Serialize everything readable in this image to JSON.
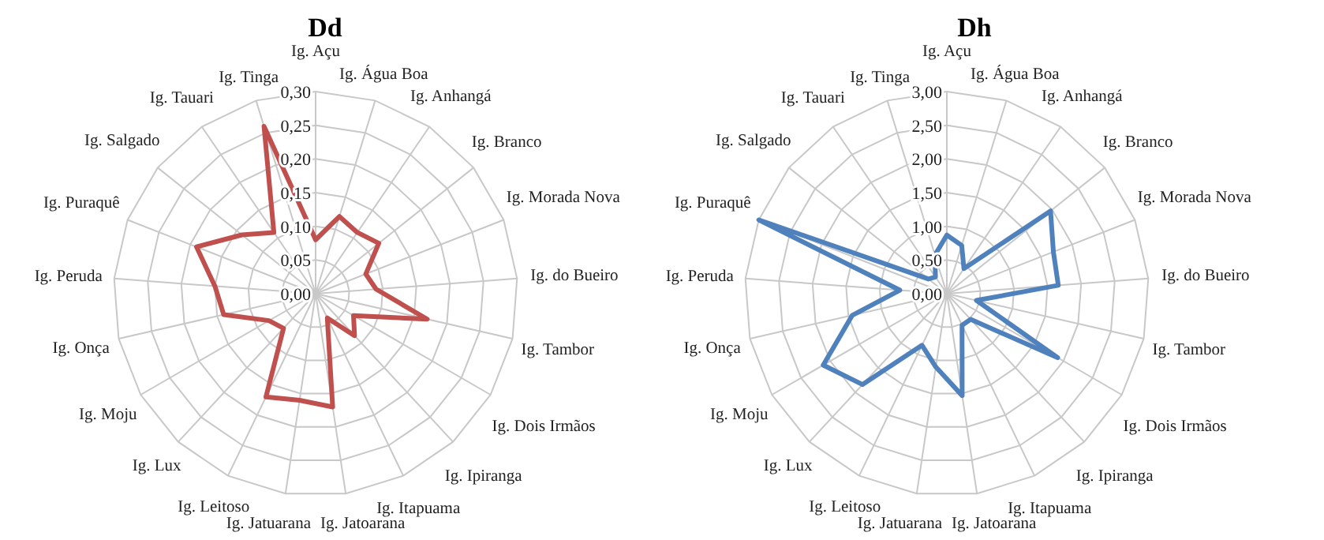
{
  "chart_data": [
    {
      "type": "radar",
      "title": "Dd",
      "categories": [
        "Ig. Açu",
        "Ig. Água Boa",
        "Ig. Anhangá",
        "Ig. Branco",
        "Ig. Morada Nova",
        "Ig. do Bueiro",
        "Ig. Tambor",
        "Ig. Dois Irmãos",
        "Ig. Ipiranga",
        "Ig. Itapuama",
        "Ig. Jatoarana",
        "Ig. Jatuarana",
        "Ig. Leitoso",
        "Ig. Lux",
        "Ig. Moju",
        "Ig. Onça",
        "Ig. Peruda",
        "Ig. Puraquê",
        "Ig. Salgado",
        "Ig. Tauari",
        "Ig. Tinga"
      ],
      "series": [
        {
          "color": "#c0504d",
          "values": [
            0.08,
            0.12,
            0.11,
            0.12,
            0.08,
            0.09,
            0.17,
            0.065,
            0.085,
            0.04,
            0.17,
            0.16,
            0.17,
            0.07,
            0.08,
            0.14,
            0.15,
            0.19,
            0.14,
            0.11,
            0.26
          ]
        }
      ],
      "ylim": [
        0,
        0.3
      ],
      "yticks": [
        {
          "value": 0,
          "label": "0,00"
        },
        {
          "value": 0.05,
          "label": "0,05"
        },
        {
          "value": 0.1,
          "label": "0,10"
        },
        {
          "value": 0.15,
          "label": "0,15"
        },
        {
          "value": 0.2,
          "label": "0,20"
        },
        {
          "value": 0.25,
          "label": "0,25"
        },
        {
          "value": 0.3,
          "label": "0,30"
        }
      ],
      "grid": true,
      "marker": "none"
    },
    {
      "type": "radar",
      "title": "Dh",
      "categories": [
        "Ig. Açu",
        "Ig. Água Boa",
        "Ig. Anhangá",
        "Ig. Branco",
        "Ig. Morada Nova",
        "Ig. do Bueiro",
        "Ig. Tambor",
        "Ig. Dois Irmãos",
        "Ig. Ipiranga",
        "Ig. Itapuama",
        "Ig. Jatoarana",
        "Ig. Jatuarana",
        "Ig. Leitoso",
        "Ig. Lux",
        "Ig. Moju",
        "Ig. Onça",
        "Ig. Peruda",
        "Ig. Puraquê",
        "Ig. Salgado",
        "Ig. Tauari",
        "Ig. Tinga"
      ],
      "series": [
        {
          "color": "#4f81bd",
          "values": [
            0.87,
            0.75,
            0.45,
            1.97,
            1.7,
            1.66,
            0.45,
            1.9,
            0.52,
            0.52,
            1.53,
            1.1,
            0.85,
            1.84,
            2.12,
            1.44,
            0.7,
            3.0,
            0.35,
            0.3,
            0.6
          ]
        }
      ],
      "ylim": [
        0,
        3
      ],
      "yticks": [
        {
          "value": 0,
          "label": "0,00"
        },
        {
          "value": 0.5,
          "label": "0,50"
        },
        {
          "value": 1,
          "label": "1,00"
        },
        {
          "value": 1.5,
          "label": "1,50"
        },
        {
          "value": 2,
          "label": "2,00"
        },
        {
          "value": 2.5,
          "label": "2,50"
        },
        {
          "value": 3,
          "label": "3,00"
        }
      ],
      "grid": true,
      "marker": "none"
    }
  ]
}
